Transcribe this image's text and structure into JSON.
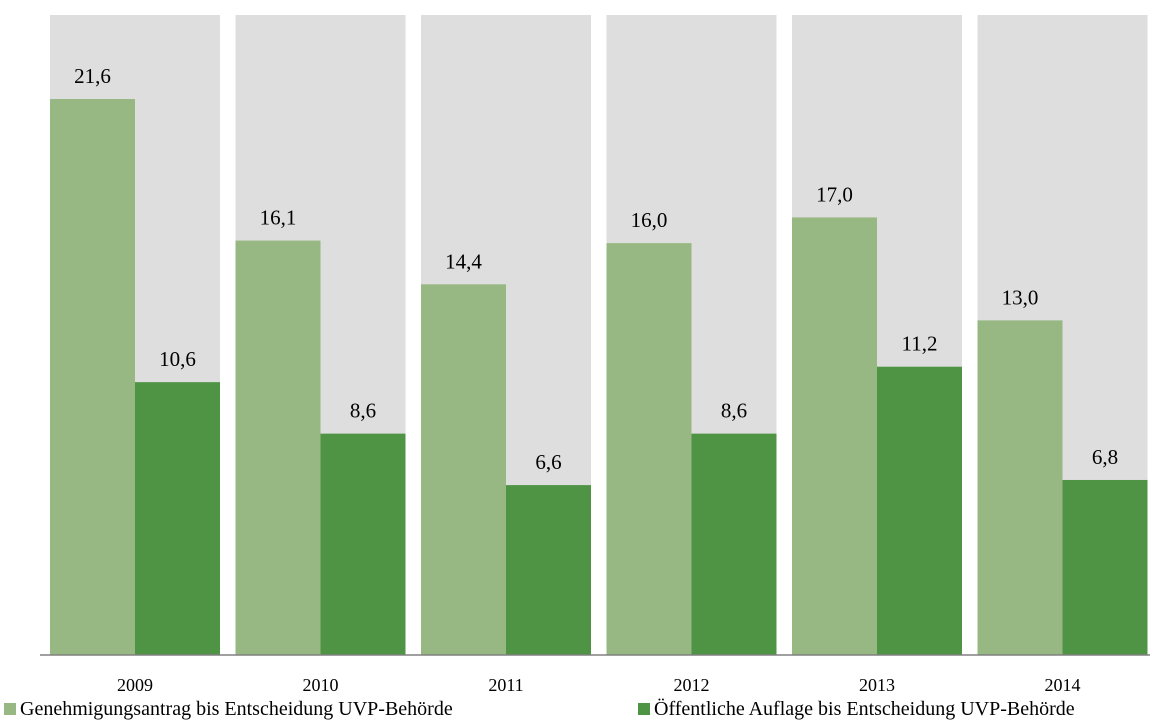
{
  "chart_data": {
    "type": "bar",
    "title": "",
    "xlabel": "",
    "ylabel": "",
    "categories": [
      "2009",
      "2010",
      "2011",
      "2012",
      "2013",
      "2014"
    ],
    "series": [
      {
        "name": "Genehmigungsantrag bis Entscheidung UVP-Behörde",
        "values": [
          21.6,
          16.1,
          14.4,
          16.0,
          17.0,
          13.0
        ],
        "labels": [
          "21,6",
          "16,1",
          "14,4",
          "16,0",
          "17,0",
          "13,0"
        ],
        "color": "#97b882"
      },
      {
        "name": "Öffentliche Auflage bis Entscheidung UVP-Behörde",
        "values": [
          10.6,
          8.6,
          6.6,
          8.6,
          11.2,
          6.8
        ],
        "labels": [
          "10,6",
          "8,6",
          "6,6",
          "8,6",
          "11,2",
          "6,8"
        ],
        "color": "#4f9445"
      }
    ],
    "ylim": [
      0,
      25
    ],
    "y_axis_visible": false,
    "grid": false,
    "category_background_color": "#dedede",
    "data_labels": true,
    "legend_position": "bottom"
  }
}
